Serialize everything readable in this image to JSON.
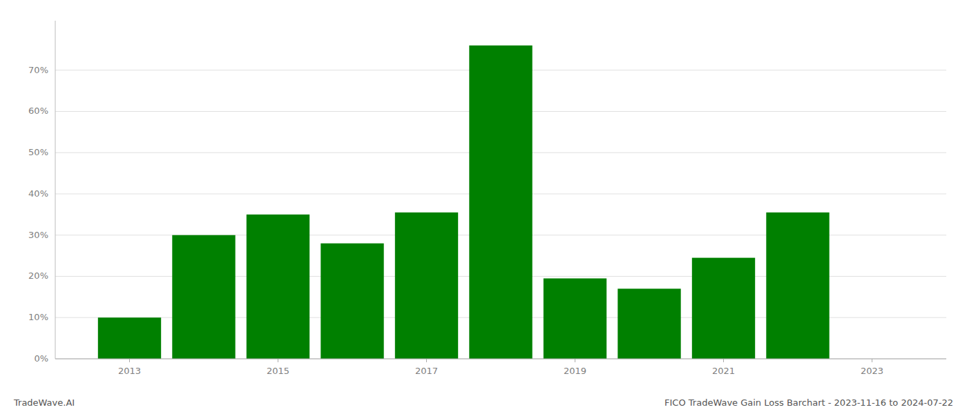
{
  "chart_data": {
    "type": "bar",
    "title": "FICO TradeWave Gain Loss Barchart - 2023-11-16 to 2024-07-22",
    "annotations": [
      "TradeWave.AI"
    ],
    "x": [
      2013,
      2014,
      2015,
      2016,
      2017,
      2018,
      2019,
      2020,
      2021,
      2022,
      2023
    ],
    "values": [
      0.1,
      0.3,
      0.35,
      0.28,
      0.355,
      0.76,
      0.195,
      0.17,
      0.245,
      0.355,
      0.0
    ],
    "color": "#008000",
    "xlim": [
      2012.0,
      2024.0
    ],
    "xticks": [
      2013,
      2015,
      2017,
      2019,
      2021,
      2023
    ],
    "ylim": [
      0,
      0.82
    ],
    "yticks": [
      {
        "value": 0.0,
        "label": "0%"
      },
      {
        "value": 0.1,
        "label": "10%"
      },
      {
        "value": 0.2,
        "label": "20%"
      },
      {
        "value": 0.3,
        "label": "30%"
      },
      {
        "value": 0.4,
        "label": "40%"
      },
      {
        "value": 0.5,
        "label": "50%"
      },
      {
        "value": 0.6,
        "label": "60%"
      },
      {
        "value": 0.7,
        "label": "70%"
      }
    ],
    "grid": true
  }
}
